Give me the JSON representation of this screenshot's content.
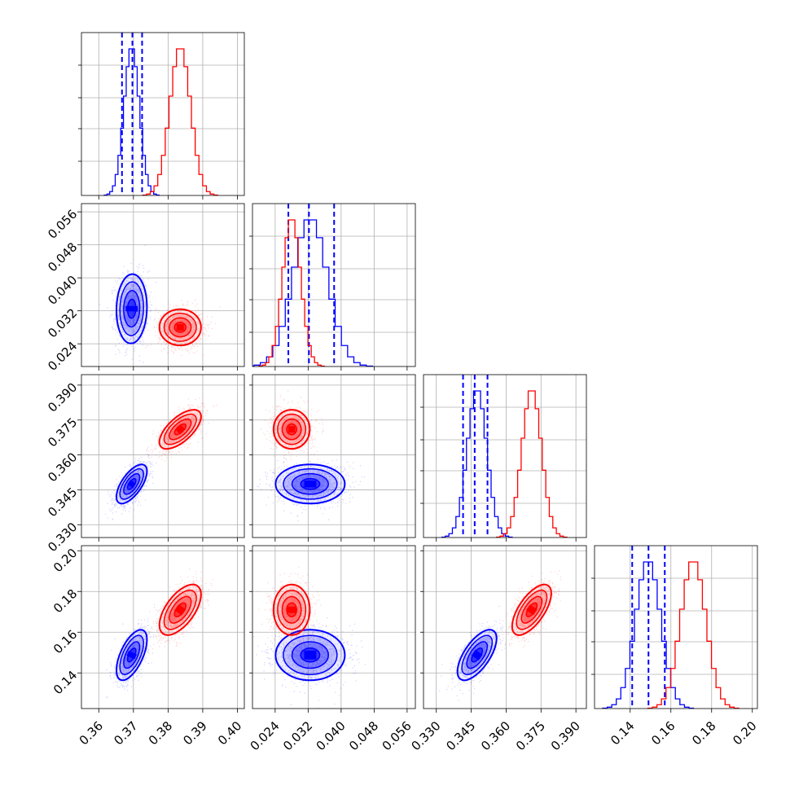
{
  "chart_data": {
    "type": "corner",
    "description_kind": "corner plot of 4 parameters, two posterior samples",
    "grid": true,
    "series": [
      {
        "color": "#0000ff",
        "mean": [
          0.3695,
          0.0325,
          0.3475,
          0.1488
        ],
        "sd": [
          0.0022,
          0.0042,
          0.0042,
          0.0062
        ],
        "quantiles": [
          [
            0.3667,
            0.3697,
            0.3725
          ],
          [
            0.0272,
            0.0322,
            0.0383
          ],
          [
            0.3415,
            0.3465,
            0.352
          ],
          [
            0.141,
            0.149,
            0.157
          ]
        ],
        "correlation": {
          "1-0": 0.05,
          "2-0": 0.65,
          "2-1": 0.0,
          "3-0": 0.6,
          "3-1": 0.0,
          "3-2": 0.65
        }
      },
      {
        "color": "#ff0000",
        "mean": [
          0.3835,
          0.028,
          0.371,
          0.171
        ],
        "sd": [
          0.003,
          0.0022,
          0.0042,
          0.0062
        ],
        "quantiles": null,
        "correlation": {
          "1-0": 0.0,
          "2-0": 0.65,
          "2-1": 0.0,
          "3-0": 0.6,
          "3-1": 0.0,
          "3-2": 0.65
        }
      }
    ],
    "params": [
      {
        "range": [
          0.355,
          0.402
        ],
        "ticks": [
          "0.36",
          "0.37",
          "0.38",
          "0.39",
          "0.40"
        ]
      },
      {
        "range": [
          0.0185,
          0.058
        ],
        "ticks": [
          "0.024",
          "0.032",
          "0.040",
          "0.048",
          "0.056"
        ]
      },
      {
        "range": [
          0.3245,
          0.3945
        ],
        "ticks": [
          "0.330",
          "0.345",
          "0.360",
          "0.375",
          "0.390"
        ]
      },
      {
        "range": [
          0.1225,
          0.2025
        ],
        "ticks": [
          "0.14",
          "0.16",
          "0.18",
          "0.20"
        ]
      }
    ]
  }
}
